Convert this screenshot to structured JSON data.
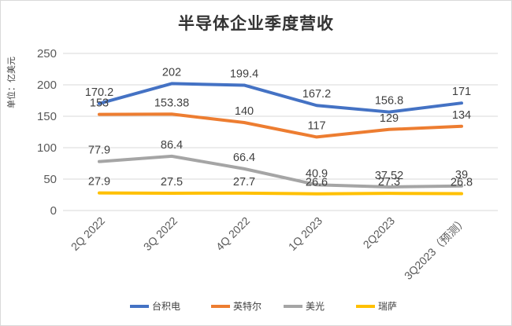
{
  "chart_data": {
    "type": "line",
    "title": "半导体企业季度营收",
    "ylabel": "单位：亿美元",
    "xlabel": "",
    "categories": [
      "2Q 2022",
      "3Q 2022",
      "4Q 2022",
      "1Q 2023",
      "2Q2023",
      "3Q2023（预测）"
    ],
    "ylim": [
      0,
      250
    ],
    "yticks": [
      "0",
      "50",
      "100",
      "150",
      "200",
      "250"
    ],
    "grid": true,
    "legend_position": "bottom",
    "series": [
      {
        "name": "台积电",
        "color": "#4472C4",
        "values": [
          170.2,
          202,
          199.4,
          167.2,
          156.8,
          171
        ],
        "labels": [
          "170.2",
          "202",
          "199.4",
          "167.2",
          "156.8",
          "171"
        ]
      },
      {
        "name": "英特尔",
        "color": "#ED7D31",
        "values": [
          153,
          153.38,
          140,
          117,
          129,
          134
        ],
        "labels": [
          "153",
          "153.38",
          "140",
          "117",
          "129",
          "134"
        ]
      },
      {
        "name": "美光",
        "color": "#A5A5A5",
        "values": [
          77.9,
          86.4,
          66.4,
          40.9,
          37.52,
          39
        ],
        "labels": [
          "77.9",
          "86.4",
          "66.4",
          "40.9",
          "37.52",
          "39"
        ]
      },
      {
        "name": "瑞萨",
        "color": "#FFC000",
        "values": [
          27.9,
          27.5,
          27.7,
          26.6,
          27.3,
          26.8
        ],
        "labels": [
          "27.9",
          "27.5",
          "27.7",
          "26.6",
          "27.3",
          "26.8"
        ]
      }
    ]
  }
}
